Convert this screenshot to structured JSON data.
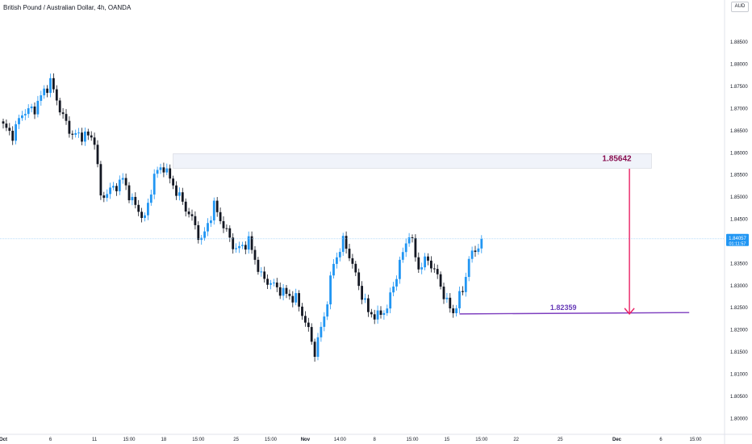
{
  "header": {
    "symbol_title": "British Pound / Australian Dollar, 4h, OANDA",
    "currency": "AUD"
  },
  "chart_data": {
    "type": "candlestick",
    "title": "British Pound / Australian Dollar, 4h, OANDA",
    "ylim": [
      1.7975,
      1.8905
    ],
    "y_ticks": [
      "1.88500",
      "1.88000",
      "1.87500",
      "1.87000",
      "1.86500",
      "1.86000",
      "1.85500",
      "1.85000",
      "1.84500",
      "1.84000",
      "1.83500",
      "1.83000",
      "1.82500",
      "1.82000",
      "1.81500",
      "1.81000",
      "1.80500",
      "1.80000"
    ],
    "x_ticks": [
      "Oct",
      "6",
      "11",
      "15:00",
      "18",
      "15:00",
      "25",
      "15:00",
      "Nov",
      "14:00",
      "8",
      "15:00",
      "15",
      "15:00",
      "22",
      "25",
      "Dec",
      "6",
      "15:00"
    ],
    "x_tick_index": [
      0,
      15,
      29,
      40,
      51,
      62,
      74,
      85,
      96,
      107,
      118,
      130,
      141,
      152,
      163,
      177,
      195,
      209,
      220
    ],
    "bar_count": 153,
    "last_price": "1.84057",
    "countdown": "01:11:57",
    "last_price_color": "#2196f3",
    "colors": {
      "up": "#2196f3",
      "down": "#131722",
      "resistance_zone": "#f0f3fa",
      "target_arrow": "#e91e63",
      "support_line": "#7e3fbf",
      "support_label": "#673ab7",
      "resistance_label": "#880e4f"
    },
    "annotations": {
      "resistance_label": "1.85642",
      "resistance_zone": [
        1.8565,
        1.8598
      ],
      "support_label": "1.82359",
      "support_level": 1.8236,
      "arrow": {
        "from": 1.8564,
        "to": 1.8236,
        "bar": 199
      }
    },
    "key_points": [
      {
        "bar": 0,
        "price": 1.866
      },
      {
        "bar": 3,
        "price": 1.864
      },
      {
        "bar": 6,
        "price": 1.869
      },
      {
        "bar": 10,
        "price": 1.87
      },
      {
        "bar": 13,
        "price": 1.874
      },
      {
        "bar": 15,
        "price": 1.876
      },
      {
        "bar": 19,
        "price": 1.868
      },
      {
        "bar": 22,
        "price": 1.864
      },
      {
        "bar": 26,
        "price": 1.864
      },
      {
        "bar": 29,
        "price": 1.863
      },
      {
        "bar": 31,
        "price": 1.85
      },
      {
        "bar": 35,
        "price": 1.852
      },
      {
        "bar": 38,
        "price": 1.854
      },
      {
        "bar": 41,
        "price": 1.849
      },
      {
        "bar": 45,
        "price": 1.845
      },
      {
        "bar": 48,
        "price": 1.855
      },
      {
        "bar": 51,
        "price": 1.857
      },
      {
        "bar": 53,
        "price": 1.854
      },
      {
        "bar": 56,
        "price": 1.85
      },
      {
        "bar": 60,
        "price": 1.845
      },
      {
        "bar": 63,
        "price": 1.84
      },
      {
        "bar": 67,
        "price": 1.848
      },
      {
        "bar": 71,
        "price": 1.842
      },
      {
        "bar": 74,
        "price": 1.838
      },
      {
        "bar": 78,
        "price": 1.84
      },
      {
        "bar": 82,
        "price": 1.832
      },
      {
        "bar": 86,
        "price": 1.83
      },
      {
        "bar": 90,
        "price": 1.828
      },
      {
        "bar": 93,
        "price": 1.827
      },
      {
        "bar": 96,
        "price": 1.822
      },
      {
        "bar": 99,
        "price": 1.815
      },
      {
        "bar": 102,
        "price": 1.823
      },
      {
        "bar": 105,
        "price": 1.835
      },
      {
        "bar": 108,
        "price": 1.84
      },
      {
        "bar": 110,
        "price": 1.837
      },
      {
        "bar": 113,
        "price": 1.83
      },
      {
        "bar": 116,
        "price": 1.824
      },
      {
        "bar": 119,
        "price": 1.823
      },
      {
        "bar": 122,
        "price": 1.825
      },
      {
        "bar": 126,
        "price": 1.835
      },
      {
        "bar": 129,
        "price": 1.842
      },
      {
        "bar": 132,
        "price": 1.834
      },
      {
        "bar": 135,
        "price": 1.836
      },
      {
        "bar": 138,
        "price": 1.832
      },
      {
        "bar": 141,
        "price": 1.826
      },
      {
        "bar": 143,
        "price": 1.824
      },
      {
        "bar": 146,
        "price": 1.829
      },
      {
        "bar": 148,
        "price": 1.836
      },
      {
        "bar": 150,
        "price": 1.838
      },
      {
        "bar": 152,
        "price": 1.8406
      }
    ]
  }
}
